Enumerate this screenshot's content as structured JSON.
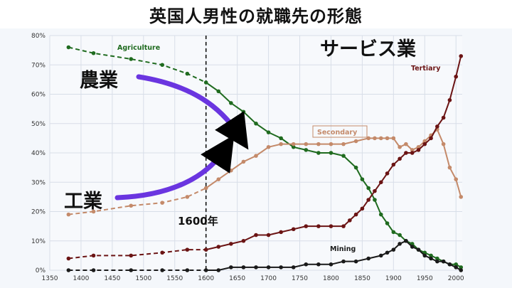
{
  "title": "英国人男性の就職先の形態",
  "annotations": {
    "agriculture_jp": "農業",
    "industry_jp": "工業",
    "service_jp": "サービス業",
    "year_marker": "1600年"
  },
  "colors": {
    "agriculture": "#1f6b1f",
    "secondary": "#c48a6a",
    "tertiary": "#6b1414",
    "mining": "#1a1a1a",
    "arrow": "#6a35e0",
    "grid": "#d8dee8"
  },
  "chart_data": {
    "type": "line",
    "xlim": [
      1350,
      2010
    ],
    "ylim": [
      0,
      80
    ],
    "x_ticks": [
      "1350",
      "1400",
      "1450",
      "1500",
      "1550",
      "1600",
      "1650",
      "1700",
      "1750",
      "1800",
      "1850",
      "1900",
      "1950",
      "2000"
    ],
    "y_ticks": [
      "0%",
      "10%",
      "20%",
      "30%",
      "40%",
      "50%",
      "60%",
      "70%",
      "80%"
    ],
    "vertical_marker_x": 1600,
    "series": [
      {
        "key": "agriculture",
        "name": "Agriculture",
        "points": [
          [
            1380,
            76
          ],
          [
            1420,
            74
          ],
          [
            1480,
            72
          ],
          [
            1530,
            70
          ],
          [
            1570,
            67
          ],
          [
            1600,
            64
          ],
          [
            1620,
            61
          ],
          [
            1640,
            57
          ],
          [
            1660,
            54
          ],
          [
            1680,
            50
          ],
          [
            1700,
            47
          ],
          [
            1720,
            45
          ],
          [
            1740,
            42
          ],
          [
            1760,
            41
          ],
          [
            1780,
            40
          ],
          [
            1800,
            40
          ],
          [
            1820,
            39
          ],
          [
            1840,
            35
          ],
          [
            1850,
            31
          ],
          [
            1860,
            28
          ],
          [
            1870,
            24
          ],
          [
            1880,
            19
          ],
          [
            1890,
            16
          ],
          [
            1900,
            13
          ],
          [
            1910,
            12
          ],
          [
            1920,
            10
          ],
          [
            1930,
            9
          ],
          [
            1940,
            7
          ],
          [
            1950,
            6
          ],
          [
            1960,
            5
          ],
          [
            1970,
            4
          ],
          [
            1980,
            3
          ],
          [
            1990,
            2
          ],
          [
            2000,
            2
          ],
          [
            2008,
            1
          ]
        ]
      },
      {
        "key": "secondary",
        "name": "Secondary",
        "points": [
          [
            1380,
            19
          ],
          [
            1420,
            20
          ],
          [
            1480,
            22
          ],
          [
            1530,
            23
          ],
          [
            1570,
            25
          ],
          [
            1600,
            28
          ],
          [
            1620,
            31
          ],
          [
            1640,
            34
          ],
          [
            1660,
            37
          ],
          [
            1680,
            39
          ],
          [
            1700,
            42
          ],
          [
            1720,
            43
          ],
          [
            1740,
            43
          ],
          [
            1760,
            43
          ],
          [
            1780,
            43
          ],
          [
            1800,
            43
          ],
          [
            1820,
            43
          ],
          [
            1840,
            44
          ],
          [
            1860,
            45
          ],
          [
            1870,
            45
          ],
          [
            1880,
            45
          ],
          [
            1890,
            45
          ],
          [
            1900,
            45
          ],
          [
            1910,
            42
          ],
          [
            1920,
            43
          ],
          [
            1930,
            41
          ],
          [
            1940,
            42
          ],
          [
            1950,
            44
          ],
          [
            1960,
            46
          ],
          [
            1970,
            48
          ],
          [
            1980,
            43
          ],
          [
            1990,
            35
          ],
          [
            2000,
            31
          ],
          [
            2008,
            25
          ]
        ]
      },
      {
        "key": "tertiary",
        "name": "Tertiary",
        "points": [
          [
            1380,
            4
          ],
          [
            1420,
            5
          ],
          [
            1480,
            5
          ],
          [
            1530,
            6
          ],
          [
            1570,
            7
          ],
          [
            1600,
            7
          ],
          [
            1620,
            8
          ],
          [
            1640,
            9
          ],
          [
            1660,
            10
          ],
          [
            1680,
            12
          ],
          [
            1700,
            12
          ],
          [
            1720,
            13
          ],
          [
            1740,
            14
          ],
          [
            1760,
            15
          ],
          [
            1780,
            15
          ],
          [
            1800,
            15
          ],
          [
            1820,
            15
          ],
          [
            1830,
            17
          ],
          [
            1840,
            19
          ],
          [
            1850,
            21
          ],
          [
            1860,
            24
          ],
          [
            1870,
            27
          ],
          [
            1880,
            30
          ],
          [
            1890,
            33
          ],
          [
            1900,
            36
          ],
          [
            1910,
            38
          ],
          [
            1920,
            40
          ],
          [
            1930,
            40
          ],
          [
            1940,
            41
          ],
          [
            1950,
            43
          ],
          [
            1960,
            45
          ],
          [
            1970,
            49
          ],
          [
            1980,
            52
          ],
          [
            1990,
            58
          ],
          [
            2000,
            66
          ],
          [
            2008,
            73
          ]
        ]
      },
      {
        "key": "mining",
        "name": "Mining",
        "points": [
          [
            1380,
            0
          ],
          [
            1420,
            0
          ],
          [
            1480,
            0
          ],
          [
            1530,
            0
          ],
          [
            1570,
            0
          ],
          [
            1600,
            0
          ],
          [
            1620,
            0
          ],
          [
            1640,
            1
          ],
          [
            1660,
            1
          ],
          [
            1680,
            1
          ],
          [
            1700,
            1
          ],
          [
            1720,
            1
          ],
          [
            1740,
            1
          ],
          [
            1760,
            2
          ],
          [
            1780,
            2
          ],
          [
            1800,
            2
          ],
          [
            1820,
            3
          ],
          [
            1840,
            3
          ],
          [
            1860,
            4
          ],
          [
            1880,
            5
          ],
          [
            1890,
            6
          ],
          [
            1900,
            7
          ],
          [
            1910,
            9
          ],
          [
            1920,
            10
          ],
          [
            1930,
            8
          ],
          [
            1940,
            7
          ],
          [
            1950,
            5
          ],
          [
            1960,
            4
          ],
          [
            1970,
            3
          ],
          [
            1980,
            3
          ],
          [
            1990,
            2
          ],
          [
            2000,
            1
          ],
          [
            2008,
            0
          ]
        ]
      }
    ]
  }
}
